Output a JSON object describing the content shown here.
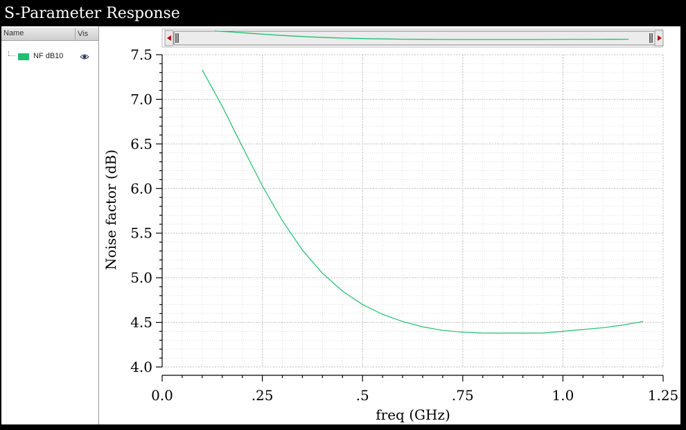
{
  "window": {
    "title": "S-Parameter Response"
  },
  "legend": {
    "col_name": "Name",
    "col_vis": "Vis",
    "items": [
      {
        "label": "NF dB10",
        "color": "#1dbf6e",
        "icon": "eye-icon"
      }
    ]
  },
  "chart_data": {
    "type": "line",
    "xlabel": "freq (GHz)",
    "ylabel": "Noise factor (dB)",
    "xlim": [
      0,
      1.25
    ],
    "ylim": [
      4.0,
      7.5
    ],
    "xticks": [
      0,
      0.25,
      0.5,
      0.75,
      1.0,
      1.25
    ],
    "xtick_labels": [
      "0.0",
      ".25",
      ".5",
      ".75",
      "1.0",
      "1.25"
    ],
    "yticks": [
      4.0,
      4.5,
      5.0,
      5.5,
      6.0,
      6.5,
      7.0,
      7.5
    ],
    "ytick_labels": [
      "4.0",
      "4.5",
      "5.0",
      "5.5",
      "6.0",
      "6.5",
      "7.0",
      "7.5"
    ],
    "grid": true,
    "series": [
      {
        "name": "NF dB10",
        "color": "#1dbf6e",
        "x": [
          0.1,
          0.15,
          0.2,
          0.25,
          0.3,
          0.35,
          0.4,
          0.45,
          0.5,
          0.55,
          0.6,
          0.65,
          0.7,
          0.75,
          0.8,
          0.85,
          0.9,
          0.95,
          1.0,
          1.05,
          1.1,
          1.15,
          1.2
        ],
        "values": [
          7.33,
          6.92,
          6.47,
          6.03,
          5.64,
          5.31,
          5.05,
          4.85,
          4.7,
          4.59,
          4.51,
          4.45,
          4.41,
          4.39,
          4.38,
          4.38,
          4.38,
          4.38,
          4.4,
          4.42,
          4.44,
          4.47,
          4.51
        ]
      }
    ],
    "overview_scrollbar": true
  }
}
